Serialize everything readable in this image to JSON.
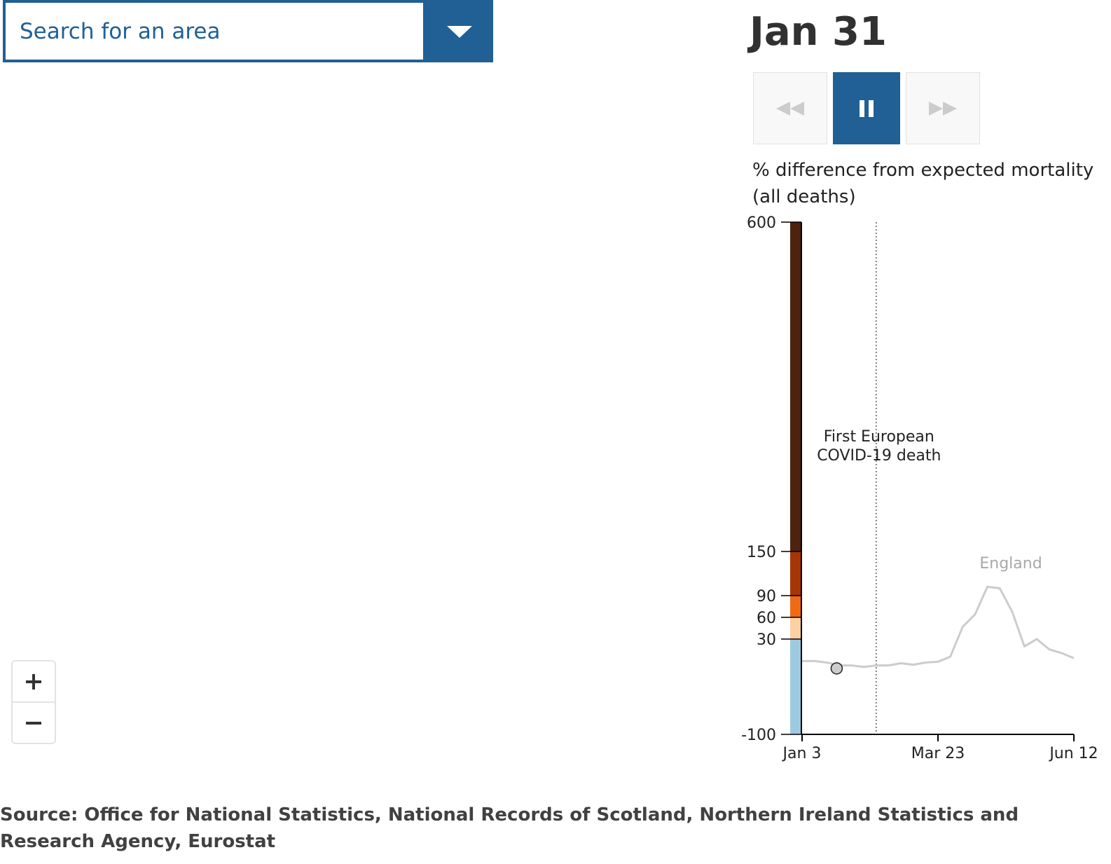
{
  "search": {
    "placeholder": "Search for an area",
    "dropdown_icon": "caret-down-icon"
  },
  "date_label": "Jan 31",
  "controls": {
    "back_icon": "rewind-icon",
    "pause_icon": "pause-icon",
    "forward_icon": "fast-forward-icon"
  },
  "chart_title": {
    "line1": "% difference from expected mortality",
    "line2": "(all deaths)"
  },
  "chart_data": {
    "type": "line",
    "title": "% difference from expected mortality (all deaths)",
    "color_scale": [
      {
        "from": -100,
        "to": 30,
        "color": "#9ecae1"
      },
      {
        "from": 30,
        "to": 60,
        "color": "#fdd0a2"
      },
      {
        "from": 60,
        "to": 90,
        "color": "#f16913"
      },
      {
        "from": 90,
        "to": 150,
        "color": "#a63603"
      },
      {
        "from": 150,
        "to": 600,
        "color": "#4d220e"
      }
    ],
    "y_ticks": [
      600,
      150,
      90,
      60,
      30,
      -100
    ],
    "y_tick_labels": [
      "600",
      "150",
      "90",
      "60",
      "30",
      "-100"
    ],
    "x_ticks": [
      0,
      11,
      22
    ],
    "x_tick_labels": [
      "Jan 3",
      "Mar 23",
      "Jun 12"
    ],
    "xlim": [
      0,
      22
    ],
    "annotation": {
      "week": 6,
      "line1": "First European",
      "line2": "COVID-19 death"
    },
    "series": [
      {
        "name": "England",
        "color": "#cccccc",
        "weeks": [
          0,
          1,
          2,
          3,
          4,
          5,
          6,
          7,
          8,
          9,
          10,
          11,
          12,
          13,
          14,
          15,
          16,
          17,
          18,
          19,
          20,
          21,
          22
        ],
        "values": [
          0,
          0,
          -2,
          -6,
          -6,
          -8,
          -6,
          -6,
          -3,
          -5,
          -2,
          -1,
          6,
          47,
          64,
          102,
          100,
          68,
          20,
          30,
          16,
          11,
          4
        ]
      }
    ],
    "current_point": {
      "week": 2.8,
      "value": -10
    },
    "england_label": "England"
  },
  "zoom": {
    "in_icon": "plus-icon",
    "out_icon": "minus-icon"
  },
  "source": "Source: Office for National Statistics, National Records of Scotland, Northern Ireland Statistics and Research Agency, Eurostat"
}
